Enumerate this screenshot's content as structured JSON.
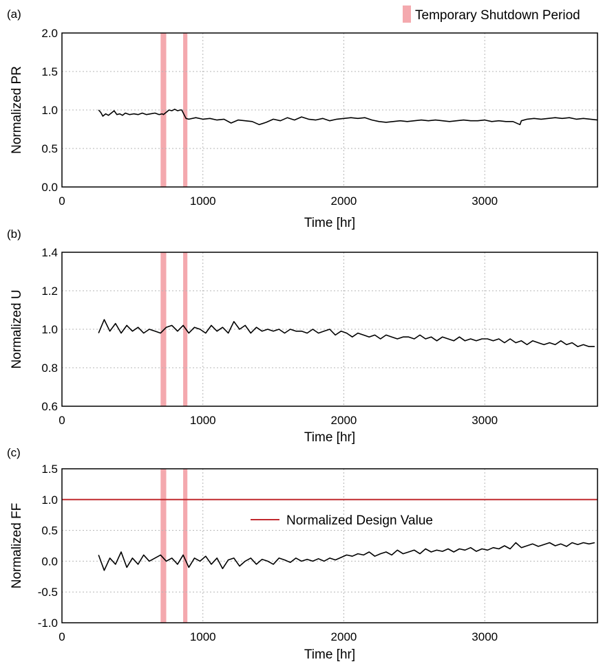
{
  "legend": {
    "shutdown_label": "Temporary Shutdown Period",
    "design_label": "Normalized Design Value",
    "shutdown_color": "#f4a9ae",
    "design_color": "#c0282d"
  },
  "chart_data": [
    {
      "panel": "(a)",
      "type": "line",
      "title": "",
      "xlabel": "Time [hr]",
      "ylabel": "Normalized PR",
      "xlim": [
        0,
        3800
      ],
      "ylim": [
        0.0,
        2.0
      ],
      "xticks": [
        0,
        1000,
        2000,
        3000
      ],
      "xtick_labels": [
        "0",
        "1000",
        "2000",
        "3000"
      ],
      "yticks": [
        0.0,
        0.5,
        1.0,
        1.5,
        2.0
      ],
      "ytick_labels": [
        "0.0",
        "0.5",
        "1.0",
        "1.5",
        "2.0"
      ],
      "grid": true,
      "shutdown_periods": [
        [
          700,
          740
        ],
        [
          860,
          890
        ]
      ],
      "series": [
        {
          "color": "#000000",
          "x": [
            260,
            275,
            290,
            310,
            330,
            350,
            370,
            390,
            410,
            430,
            450,
            480,
            510,
            540,
            570,
            600,
            630,
            660,
            690,
            710,
            720,
            760,
            780,
            800,
            820,
            840,
            850,
            880,
            900,
            950,
            1000,
            1050,
            1100,
            1150,
            1200,
            1250,
            1300,
            1350,
            1400,
            1450,
            1500,
            1550,
            1600,
            1650,
            1700,
            1750,
            1800,
            1850,
            1900,
            1950,
            2000,
            2050,
            2100,
            2150,
            2200,
            2250,
            2300,
            2350,
            2400,
            2450,
            2500,
            2550,
            2600,
            2650,
            2700,
            2750,
            2800,
            2850,
            2900,
            2950,
            3000,
            3050,
            3100,
            3150,
            3200,
            3250,
            3260,
            3300,
            3350,
            3400,
            3450,
            3500,
            3550,
            3600,
            3650,
            3700,
            3750,
            3800
          ],
          "values": [
            1.0,
            0.97,
            0.92,
            0.95,
            0.93,
            0.96,
            0.99,
            0.94,
            0.95,
            0.93,
            0.96,
            0.94,
            0.95,
            0.94,
            0.96,
            0.94,
            0.95,
            0.96,
            0.94,
            0.95,
            0.94,
            1.0,
            0.99,
            1.01,
            0.99,
            1.0,
            1.0,
            0.89,
            0.88,
            0.9,
            0.88,
            0.89,
            0.87,
            0.88,
            0.83,
            0.87,
            0.86,
            0.85,
            0.81,
            0.84,
            0.88,
            0.86,
            0.9,
            0.87,
            0.91,
            0.88,
            0.87,
            0.89,
            0.86,
            0.88,
            0.89,
            0.9,
            0.89,
            0.9,
            0.87,
            0.85,
            0.84,
            0.85,
            0.86,
            0.85,
            0.86,
            0.87,
            0.86,
            0.87,
            0.86,
            0.85,
            0.86,
            0.87,
            0.86,
            0.86,
            0.87,
            0.85,
            0.86,
            0.85,
            0.85,
            0.81,
            0.86,
            0.88,
            0.89,
            0.88,
            0.89,
            0.9,
            0.89,
            0.9,
            0.88,
            0.89,
            0.88,
            0.87
          ]
        }
      ]
    },
    {
      "panel": "(b)",
      "type": "line",
      "title": "",
      "xlabel": "Time [hr]",
      "ylabel": "Normalized U",
      "xlim": [
        0,
        3800
      ],
      "ylim": [
        0.6,
        1.4
      ],
      "xticks": [
        0,
        1000,
        2000,
        3000
      ],
      "xtick_labels": [
        "0",
        "1000",
        "2000",
        "3000"
      ],
      "yticks": [
        0.6,
        0.8,
        1.0,
        1.2,
        1.4
      ],
      "ytick_labels": [
        "0.6",
        "0.8",
        "1.0",
        "1.2",
        "1.4"
      ],
      "grid": true,
      "shutdown_periods": [
        [
          700,
          740
        ],
        [
          860,
          890
        ]
      ],
      "series": [
        {
          "color": "#000000",
          "x": [
            260,
            300,
            340,
            380,
            420,
            460,
            500,
            540,
            580,
            620,
            660,
            700,
            740,
            780,
            820,
            860,
            900,
            940,
            980,
            1020,
            1060,
            1100,
            1140,
            1180,
            1220,
            1260,
            1300,
            1340,
            1380,
            1420,
            1460,
            1500,
            1540,
            1580,
            1620,
            1660,
            1700,
            1740,
            1780,
            1820,
            1860,
            1900,
            1940,
            1980,
            2020,
            2060,
            2100,
            2140,
            2180,
            2220,
            2260,
            2300,
            2340,
            2380,
            2420,
            2460,
            2500,
            2540,
            2580,
            2620,
            2660,
            2700,
            2740,
            2780,
            2820,
            2860,
            2900,
            2940,
            2980,
            3020,
            3060,
            3100,
            3140,
            3180,
            3220,
            3260,
            3300,
            3340,
            3380,
            3420,
            3460,
            3500,
            3540,
            3580,
            3620,
            3660,
            3700,
            3740,
            3780
          ],
          "values": [
            0.98,
            1.05,
            0.99,
            1.03,
            0.98,
            1.02,
            0.99,
            1.01,
            0.98,
            1.0,
            0.99,
            0.98,
            1.01,
            1.02,
            0.99,
            1.02,
            0.98,
            1.01,
            1.0,
            0.98,
            1.02,
            0.99,
            1.01,
            0.98,
            1.04,
            1.0,
            1.02,
            0.98,
            1.01,
            0.99,
            1.0,
            0.99,
            1.0,
            0.98,
            1.0,
            0.99,
            0.99,
            0.98,
            1.0,
            0.98,
            0.99,
            1.0,
            0.97,
            0.99,
            0.98,
            0.96,
            0.98,
            0.97,
            0.96,
            0.97,
            0.95,
            0.97,
            0.96,
            0.95,
            0.96,
            0.96,
            0.95,
            0.97,
            0.95,
            0.96,
            0.94,
            0.96,
            0.95,
            0.94,
            0.96,
            0.94,
            0.95,
            0.94,
            0.95,
            0.95,
            0.94,
            0.95,
            0.93,
            0.95,
            0.93,
            0.94,
            0.92,
            0.94,
            0.93,
            0.92,
            0.93,
            0.92,
            0.94,
            0.92,
            0.93,
            0.91,
            0.92,
            0.91,
            0.91
          ]
        }
      ]
    },
    {
      "panel": "(c)",
      "type": "line",
      "title": "",
      "xlabel": "Time [hr]",
      "ylabel": "Normalized FF",
      "xlim": [
        0,
        3800
      ],
      "ylim": [
        -1.0,
        1.5
      ],
      "xticks": [
        0,
        1000,
        2000,
        3000
      ],
      "xtick_labels": [
        "0",
        "1000",
        "2000",
        "3000"
      ],
      "yticks": [
        -1.0,
        -0.5,
        0.0,
        0.5,
        1.0,
        1.5
      ],
      "ytick_labels": [
        "-1.0",
        "-0.5",
        "0.0",
        "0.5",
        "1.0",
        "1.5"
      ],
      "grid": true,
      "shutdown_periods": [
        [
          700,
          740
        ],
        [
          860,
          890
        ]
      ],
      "reference_line": {
        "value": 1.0
      },
      "series": [
        {
          "color": "#000000",
          "x": [
            260,
            300,
            340,
            380,
            420,
            460,
            500,
            540,
            580,
            620,
            660,
            700,
            740,
            780,
            820,
            860,
            900,
            940,
            980,
            1020,
            1060,
            1100,
            1140,
            1180,
            1220,
            1260,
            1300,
            1340,
            1380,
            1420,
            1460,
            1500,
            1540,
            1580,
            1620,
            1660,
            1700,
            1740,
            1780,
            1820,
            1860,
            1900,
            1940,
            1980,
            2020,
            2060,
            2100,
            2140,
            2180,
            2220,
            2260,
            2300,
            2340,
            2380,
            2420,
            2460,
            2500,
            2540,
            2580,
            2620,
            2660,
            2700,
            2740,
            2780,
            2820,
            2860,
            2900,
            2940,
            2980,
            3020,
            3060,
            3100,
            3140,
            3180,
            3220,
            3260,
            3300,
            3340,
            3380,
            3420,
            3460,
            3500,
            3540,
            3580,
            3620,
            3660,
            3700,
            3740,
            3780
          ],
          "values": [
            0.1,
            -0.15,
            0.05,
            -0.05,
            0.15,
            -0.1,
            0.05,
            -0.05,
            0.1,
            0.0,
            0.05,
            0.1,
            0.0,
            0.05,
            -0.05,
            0.1,
            -0.1,
            0.05,
            0.0,
            0.08,
            -0.05,
            0.05,
            -0.12,
            0.02,
            0.05,
            -0.08,
            0.0,
            0.05,
            -0.05,
            0.03,
            0.0,
            -0.05,
            0.05,
            0.02,
            -0.02,
            0.05,
            0.0,
            0.03,
            0.0,
            0.04,
            0.0,
            0.05,
            0.02,
            0.06,
            0.1,
            0.08,
            0.12,
            0.1,
            0.15,
            0.08,
            0.12,
            0.15,
            0.1,
            0.18,
            0.12,
            0.15,
            0.18,
            0.12,
            0.2,
            0.15,
            0.18,
            0.16,
            0.2,
            0.15,
            0.2,
            0.18,
            0.22,
            0.16,
            0.2,
            0.18,
            0.22,
            0.2,
            0.25,
            0.2,
            0.3,
            0.22,
            0.25,
            0.28,
            0.24,
            0.27,
            0.3,
            0.25,
            0.28,
            0.24,
            0.3,
            0.27,
            0.3,
            0.28,
            0.3
          ]
        }
      ]
    }
  ]
}
